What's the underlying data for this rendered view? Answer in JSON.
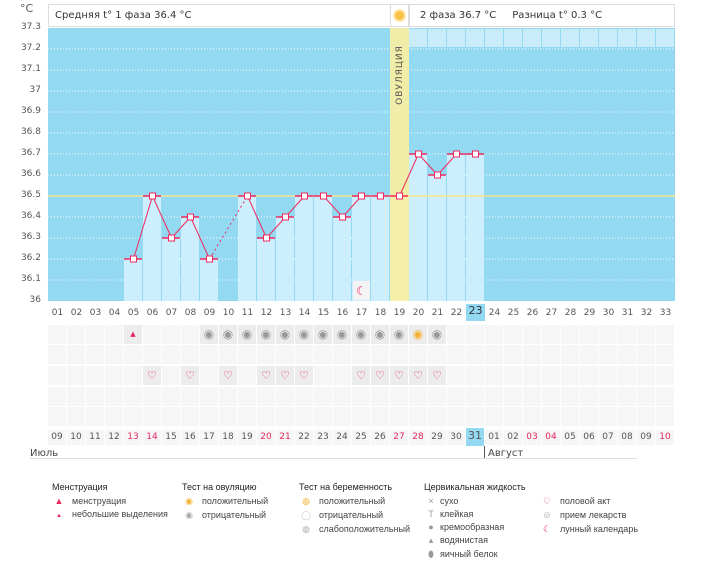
{
  "header": {
    "degree_unit": "°C",
    "phase1_label": "Средняя t° 1 фаза 36.4 °C",
    "phase2_label": "2 фаза 36.7 °C",
    "difference_label": "Разница t° 0.3 °C",
    "ovulation_label": "ОВУЛЯЦИЯ"
  },
  "chart_data": {
    "type": "line",
    "ylabel": "°C",
    "ylim": [
      36,
      37.3
    ],
    "yticks": [
      "37.3",
      "37.2",
      "37.1",
      "37",
      "36.9",
      "36.8",
      "36.7",
      "36.6",
      "36.5",
      "36.4",
      "36.3",
      "36.2",
      "36.1",
      "36"
    ],
    "coverline": 36.5,
    "ovulation_day": 19,
    "today_day": 23,
    "cycle_days": [
      "01",
      "02",
      "03",
      "04",
      "05",
      "06",
      "07",
      "08",
      "09",
      "10",
      "11",
      "12",
      "13",
      "14",
      "15",
      "16",
      "17",
      "18",
      "19",
      "20",
      "21",
      "22",
      "23",
      "24",
      "25",
      "26",
      "27",
      "28",
      "29",
      "30",
      "31",
      "32",
      "33"
    ],
    "phase2_days": [
      "01",
      "02",
      "03",
      "04",
      "05",
      "06",
      "07",
      "08",
      "09",
      "10",
      "11",
      "12",
      "13",
      "14"
    ],
    "temperatures": [
      null,
      null,
      null,
      null,
      36.2,
      36.5,
      36.3,
      36.4,
      36.2,
      null,
      36.5,
      36.3,
      36.4,
      36.5,
      36.5,
      36.4,
      36.5,
      36.5,
      36.5,
      36.7,
      36.6,
      36.7,
      36.7,
      null,
      null,
      null,
      null,
      null,
      null,
      null,
      null,
      null,
      null
    ],
    "dates": [
      "09",
      "10",
      "11",
      "12",
      "13",
      "14",
      "15",
      "16",
      "17",
      "18",
      "19",
      "20",
      "21",
      "22",
      "23",
      "24",
      "25",
      "26",
      "27",
      "28",
      "29",
      "30",
      "31",
      "01",
      "02",
      "03",
      "04",
      "05",
      "06",
      "07",
      "08",
      "09",
      "10"
    ],
    "weekend_dates_idx": [
      4,
      5,
      11,
      12,
      18,
      19,
      25,
      26,
      32
    ],
    "months": [
      "Июль",
      "Август"
    ],
    "menstruation_days": [
      5
    ],
    "ovulation_test_negative_days": [
      9,
      10,
      11,
      12,
      13,
      14,
      15,
      16,
      17,
      18,
      19,
      21
    ],
    "ovulation_test_positive_days": [
      20
    ],
    "intercourse_days": [
      6,
      8,
      10,
      12,
      13,
      14,
      17,
      18,
      19,
      20,
      21
    ],
    "lunar_days": [
      17
    ]
  },
  "colors": {
    "plot_bg": "#93d9f2",
    "bar": "#cdeefc",
    "line": "#ee2a5f",
    "ovulation": "#fbeea0",
    "coverline": "#f5e68a"
  },
  "legend": {
    "menstruation": {
      "title": "Менструация",
      "items": [
        "менструация",
        "небольшие выделения"
      ]
    },
    "ovulation_test": {
      "title": "Тест на овуляцию",
      "items": [
        "положительный",
        "отрицательный"
      ]
    },
    "pregnancy_test": {
      "title": "Тест на беременность",
      "items": [
        "положительный",
        "отрицательный",
        "слабоположительный"
      ]
    },
    "cervical": {
      "title": "Цервикальная жидкость",
      "items": [
        "сухо",
        "клейкая",
        "кремообразная",
        "водянистая",
        "яичный белок"
      ]
    },
    "other": {
      "items": [
        "половой акт",
        "прием лекарств",
        "лунный календарь"
      ]
    }
  }
}
